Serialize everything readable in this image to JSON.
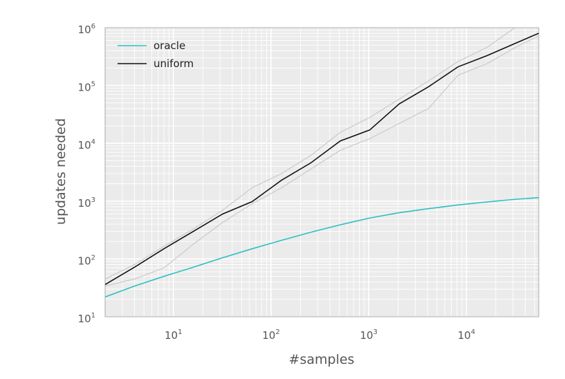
{
  "chart_data": {
    "type": "line",
    "xlabel": "#samples",
    "ylabel": "updates needed",
    "xscale": "log",
    "yscale": "log",
    "xlim": [
      2,
      55000
    ],
    "ylim": [
      10,
      1000000
    ],
    "grid": true,
    "legend_position": "top-left",
    "x_ticks": [
      {
        "base": "10",
        "exp": "1",
        "value": 10
      },
      {
        "base": "10",
        "exp": "2",
        "value": 100
      },
      {
        "base": "10",
        "exp": "3",
        "value": 1000
      },
      {
        "base": "10",
        "exp": "4",
        "value": 10000
      }
    ],
    "y_ticks": [
      {
        "base": "10",
        "exp": "1",
        "value": 10
      },
      {
        "base": "10",
        "exp": "2",
        "value": 100
      },
      {
        "base": "10",
        "exp": "3",
        "value": 1000
      },
      {
        "base": "10",
        "exp": "4",
        "value": 10000
      },
      {
        "base": "10",
        "exp": "5",
        "value": 100000
      },
      {
        "base": "10",
        "exp": "6",
        "value": 1000000
      }
    ],
    "series": [
      {
        "name": "oracle",
        "color": "#2bbfc4",
        "x": [
          2,
          4,
          8,
          16,
          32,
          64,
          128,
          256,
          512,
          1024,
          2048,
          4096,
          8192,
          16384,
          32768,
          55000
        ],
        "y": [
          22,
          34,
          50,
          72,
          105,
          150,
          210,
          290,
          390,
          510,
          630,
          740,
          860,
          970,
          1080,
          1150
        ]
      },
      {
        "name": "uniform",
        "color": "#111111",
        "x": [
          2,
          4,
          8,
          16,
          32,
          64,
          128,
          256,
          512,
          1024,
          2048,
          4096,
          8192,
          16384,
          32768,
          55000
        ],
        "y": [
          36,
          72,
          150,
          300,
          600,
          980,
          2300,
          4600,
          11000,
          17000,
          48000,
          95000,
          210000,
          330000,
          550000,
          800000
        ]
      }
    ],
    "bands": [
      {
        "of": "uniform",
        "color": "#cccccc",
        "x": [
          2,
          4,
          8,
          16,
          32,
          64,
          128,
          256,
          512,
          1024,
          2048,
          4096,
          8192,
          16384,
          32768,
          55000
        ],
        "upper": [
          45,
          80,
          165,
          330,
          700,
          1700,
          3000,
          6200,
          15500,
          28000,
          58000,
          120000,
          260000,
          460000,
          1050000,
          1700000
        ],
        "lower": [
          34,
          45,
          70,
          180,
          430,
          900,
          1700,
          3600,
          7600,
          12000,
          22000,
          40000,
          150000,
          240000,
          470000,
          720000
        ]
      }
    ]
  }
}
